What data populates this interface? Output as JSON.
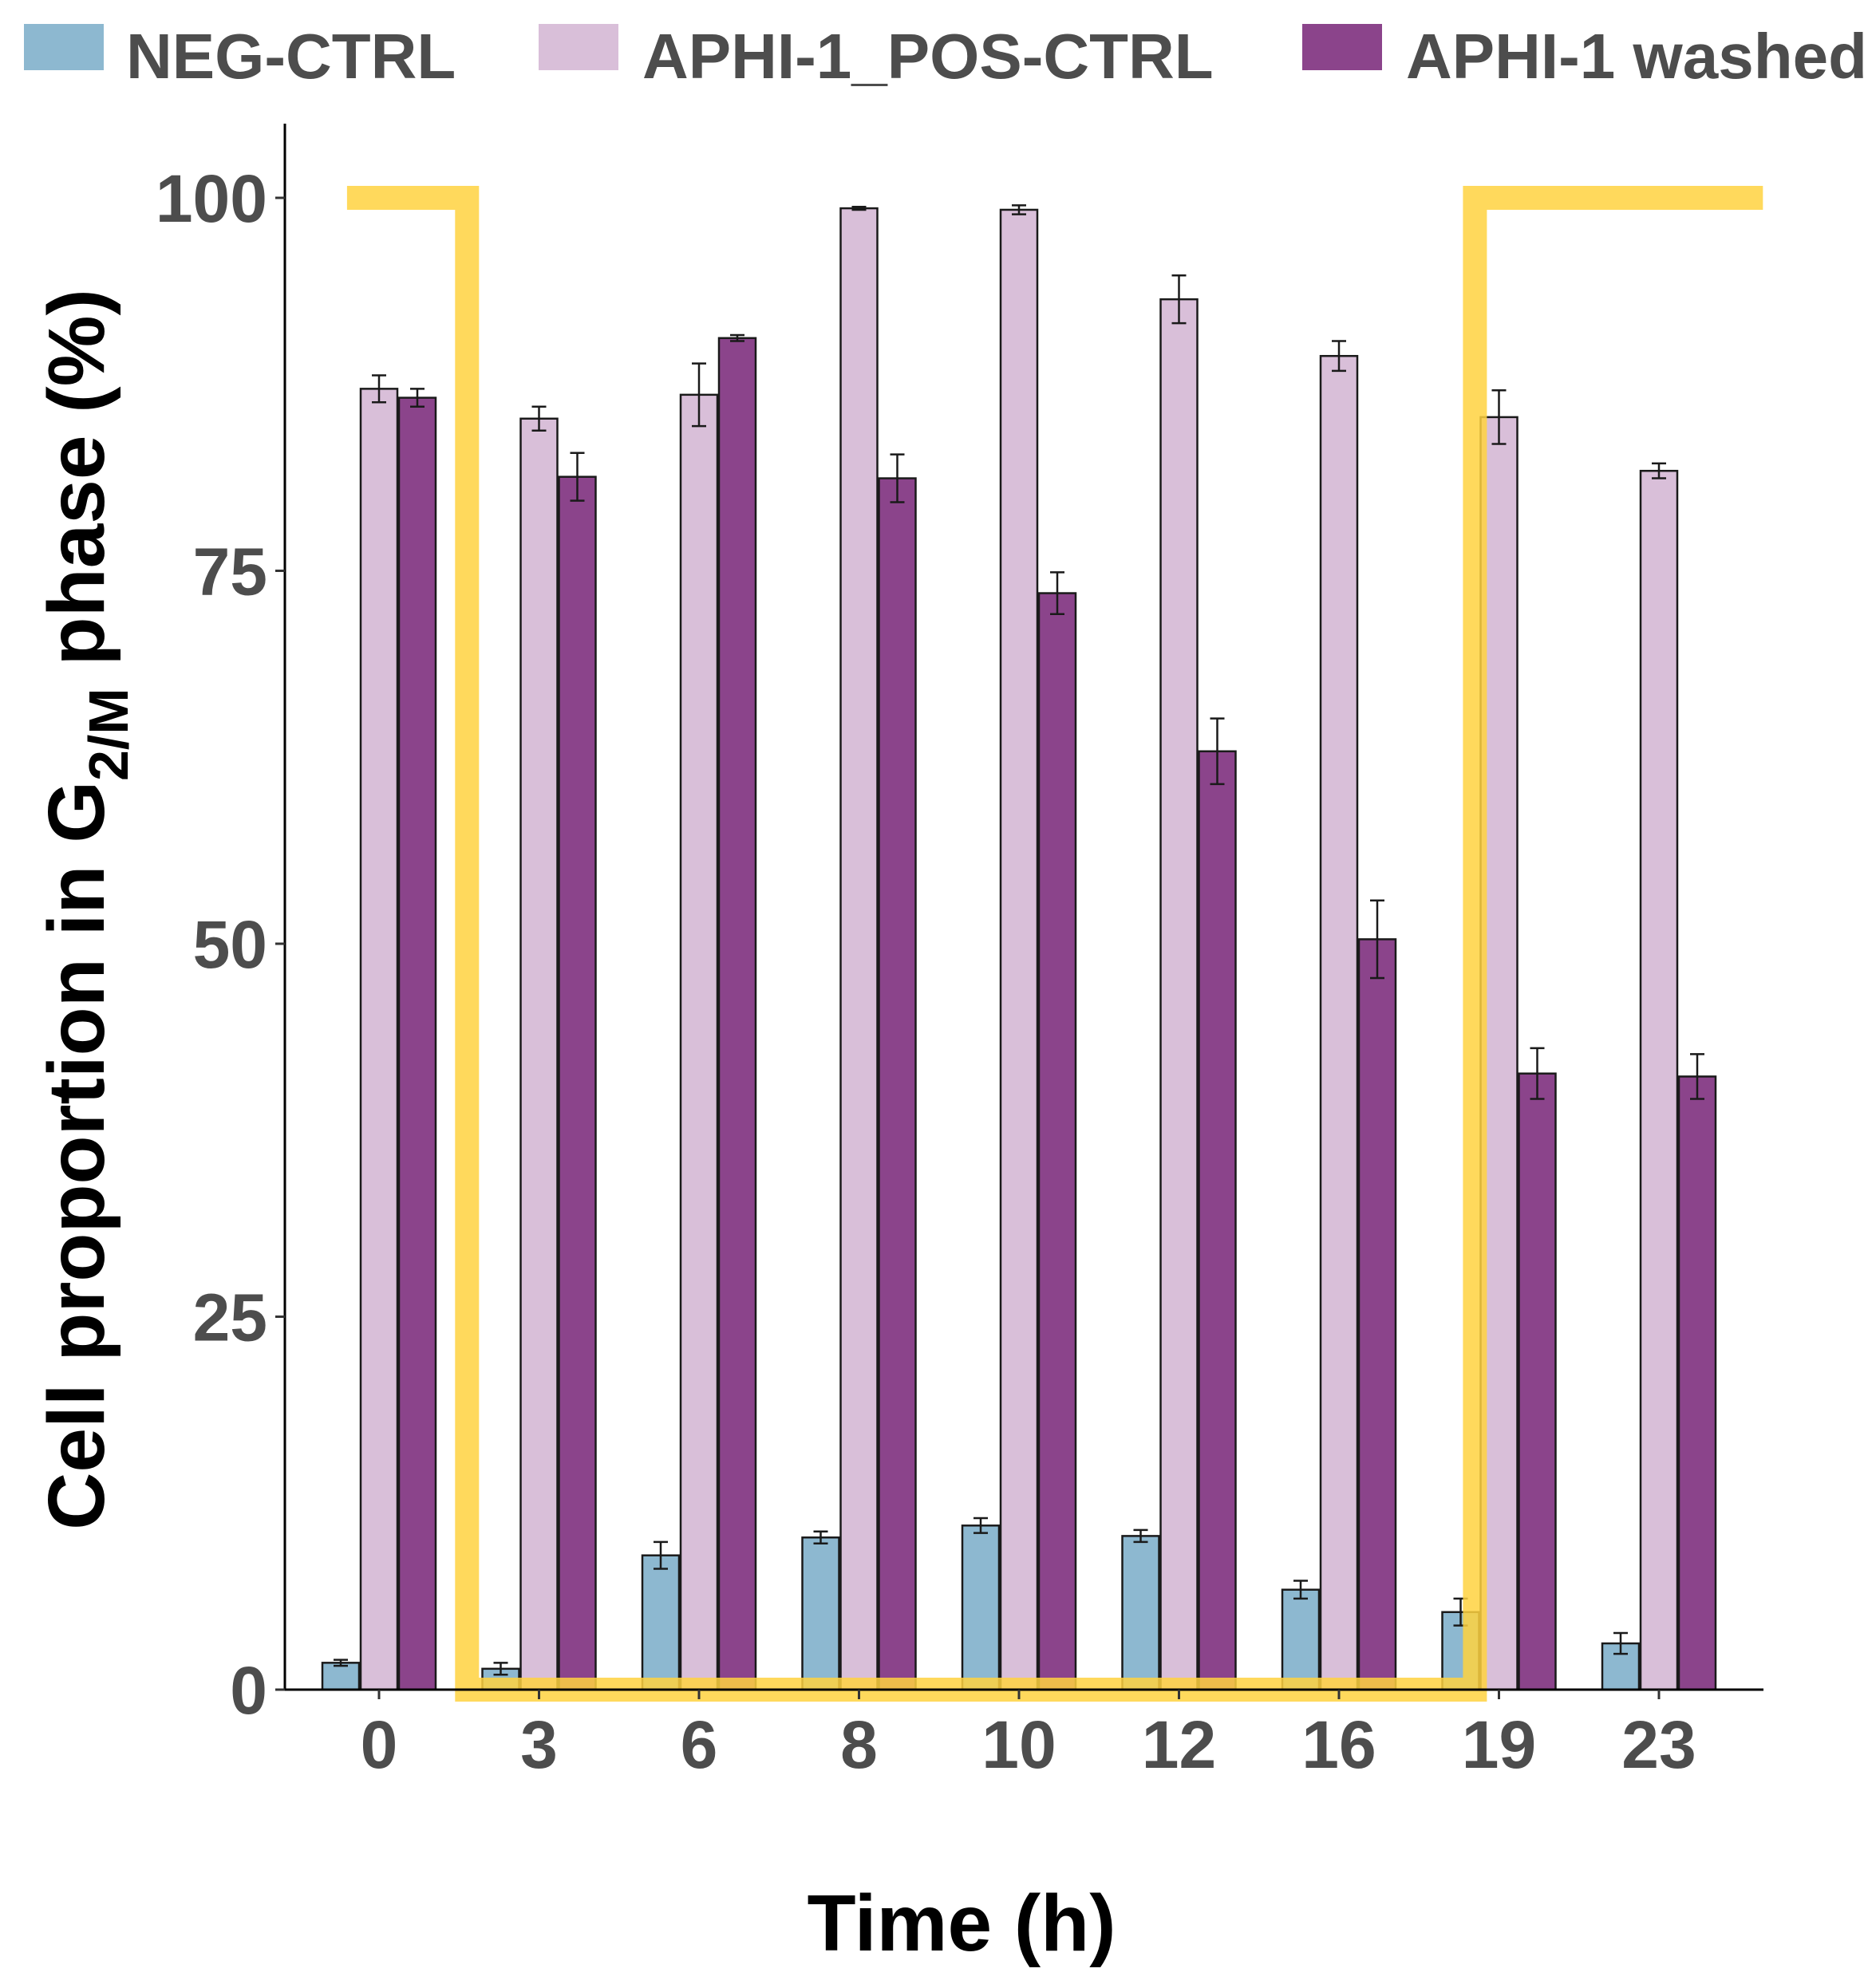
{
  "chart_data": {
    "type": "bar",
    "categories": [
      "0",
      "3",
      "6",
      "8",
      "10",
      "12",
      "16",
      "19",
      "23"
    ],
    "series": [
      {
        "name": "NEG-CTRL",
        "color": "#8db8d0",
        "values": [
          1.8,
          1.4,
          9.0,
          10.2,
          11.0,
          10.3,
          6.7,
          5.2,
          3.1
        ],
        "errors": [
          0.2,
          0.4,
          0.9,
          0.4,
          0.5,
          0.4,
          0.6,
          0.9,
          0.7
        ]
      },
      {
        "name": "APHI-1_POS-CTRL",
        "color": "#d9bfd9",
        "values": [
          87.2,
          85.2,
          86.8,
          99.3,
          99.2,
          93.2,
          89.4,
          85.3,
          81.7
        ],
        "errors": [
          0.9,
          0.8,
          2.1,
          0.1,
          0.3,
          1.6,
          1.0,
          1.8,
          0.5
        ]
      },
      {
        "name": "APHI-1 washed",
        "color": "#8b448b",
        "values": [
          86.6,
          81.3,
          90.6,
          81.2,
          73.5,
          62.9,
          50.3,
          41.3,
          41.1
        ],
        "errors": [
          0.6,
          1.6,
          0.2,
          1.6,
          1.4,
          2.2,
          2.6,
          1.7,
          1.5
        ]
      }
    ],
    "xlabel": "Time (h)",
    "ylabel_main": "Cell proportion in G",
    "ylabel_sub": "2/M",
    "ylabel_tail": " phase (%)",
    "ylim": [
      0,
      100
    ],
    "yticks": [
      "0",
      "25",
      "50",
      "75",
      "100"
    ],
    "grid": false,
    "legend_position": "top",
    "annotation": {
      "type": "step-line",
      "color": "#ffd23f",
      "path_x": [
        -0.2,
        0.55,
        0.55,
        6.85,
        6.85,
        8.65
      ],
      "path_y": [
        100,
        100,
        0,
        0,
        100,
        100
      ]
    }
  }
}
